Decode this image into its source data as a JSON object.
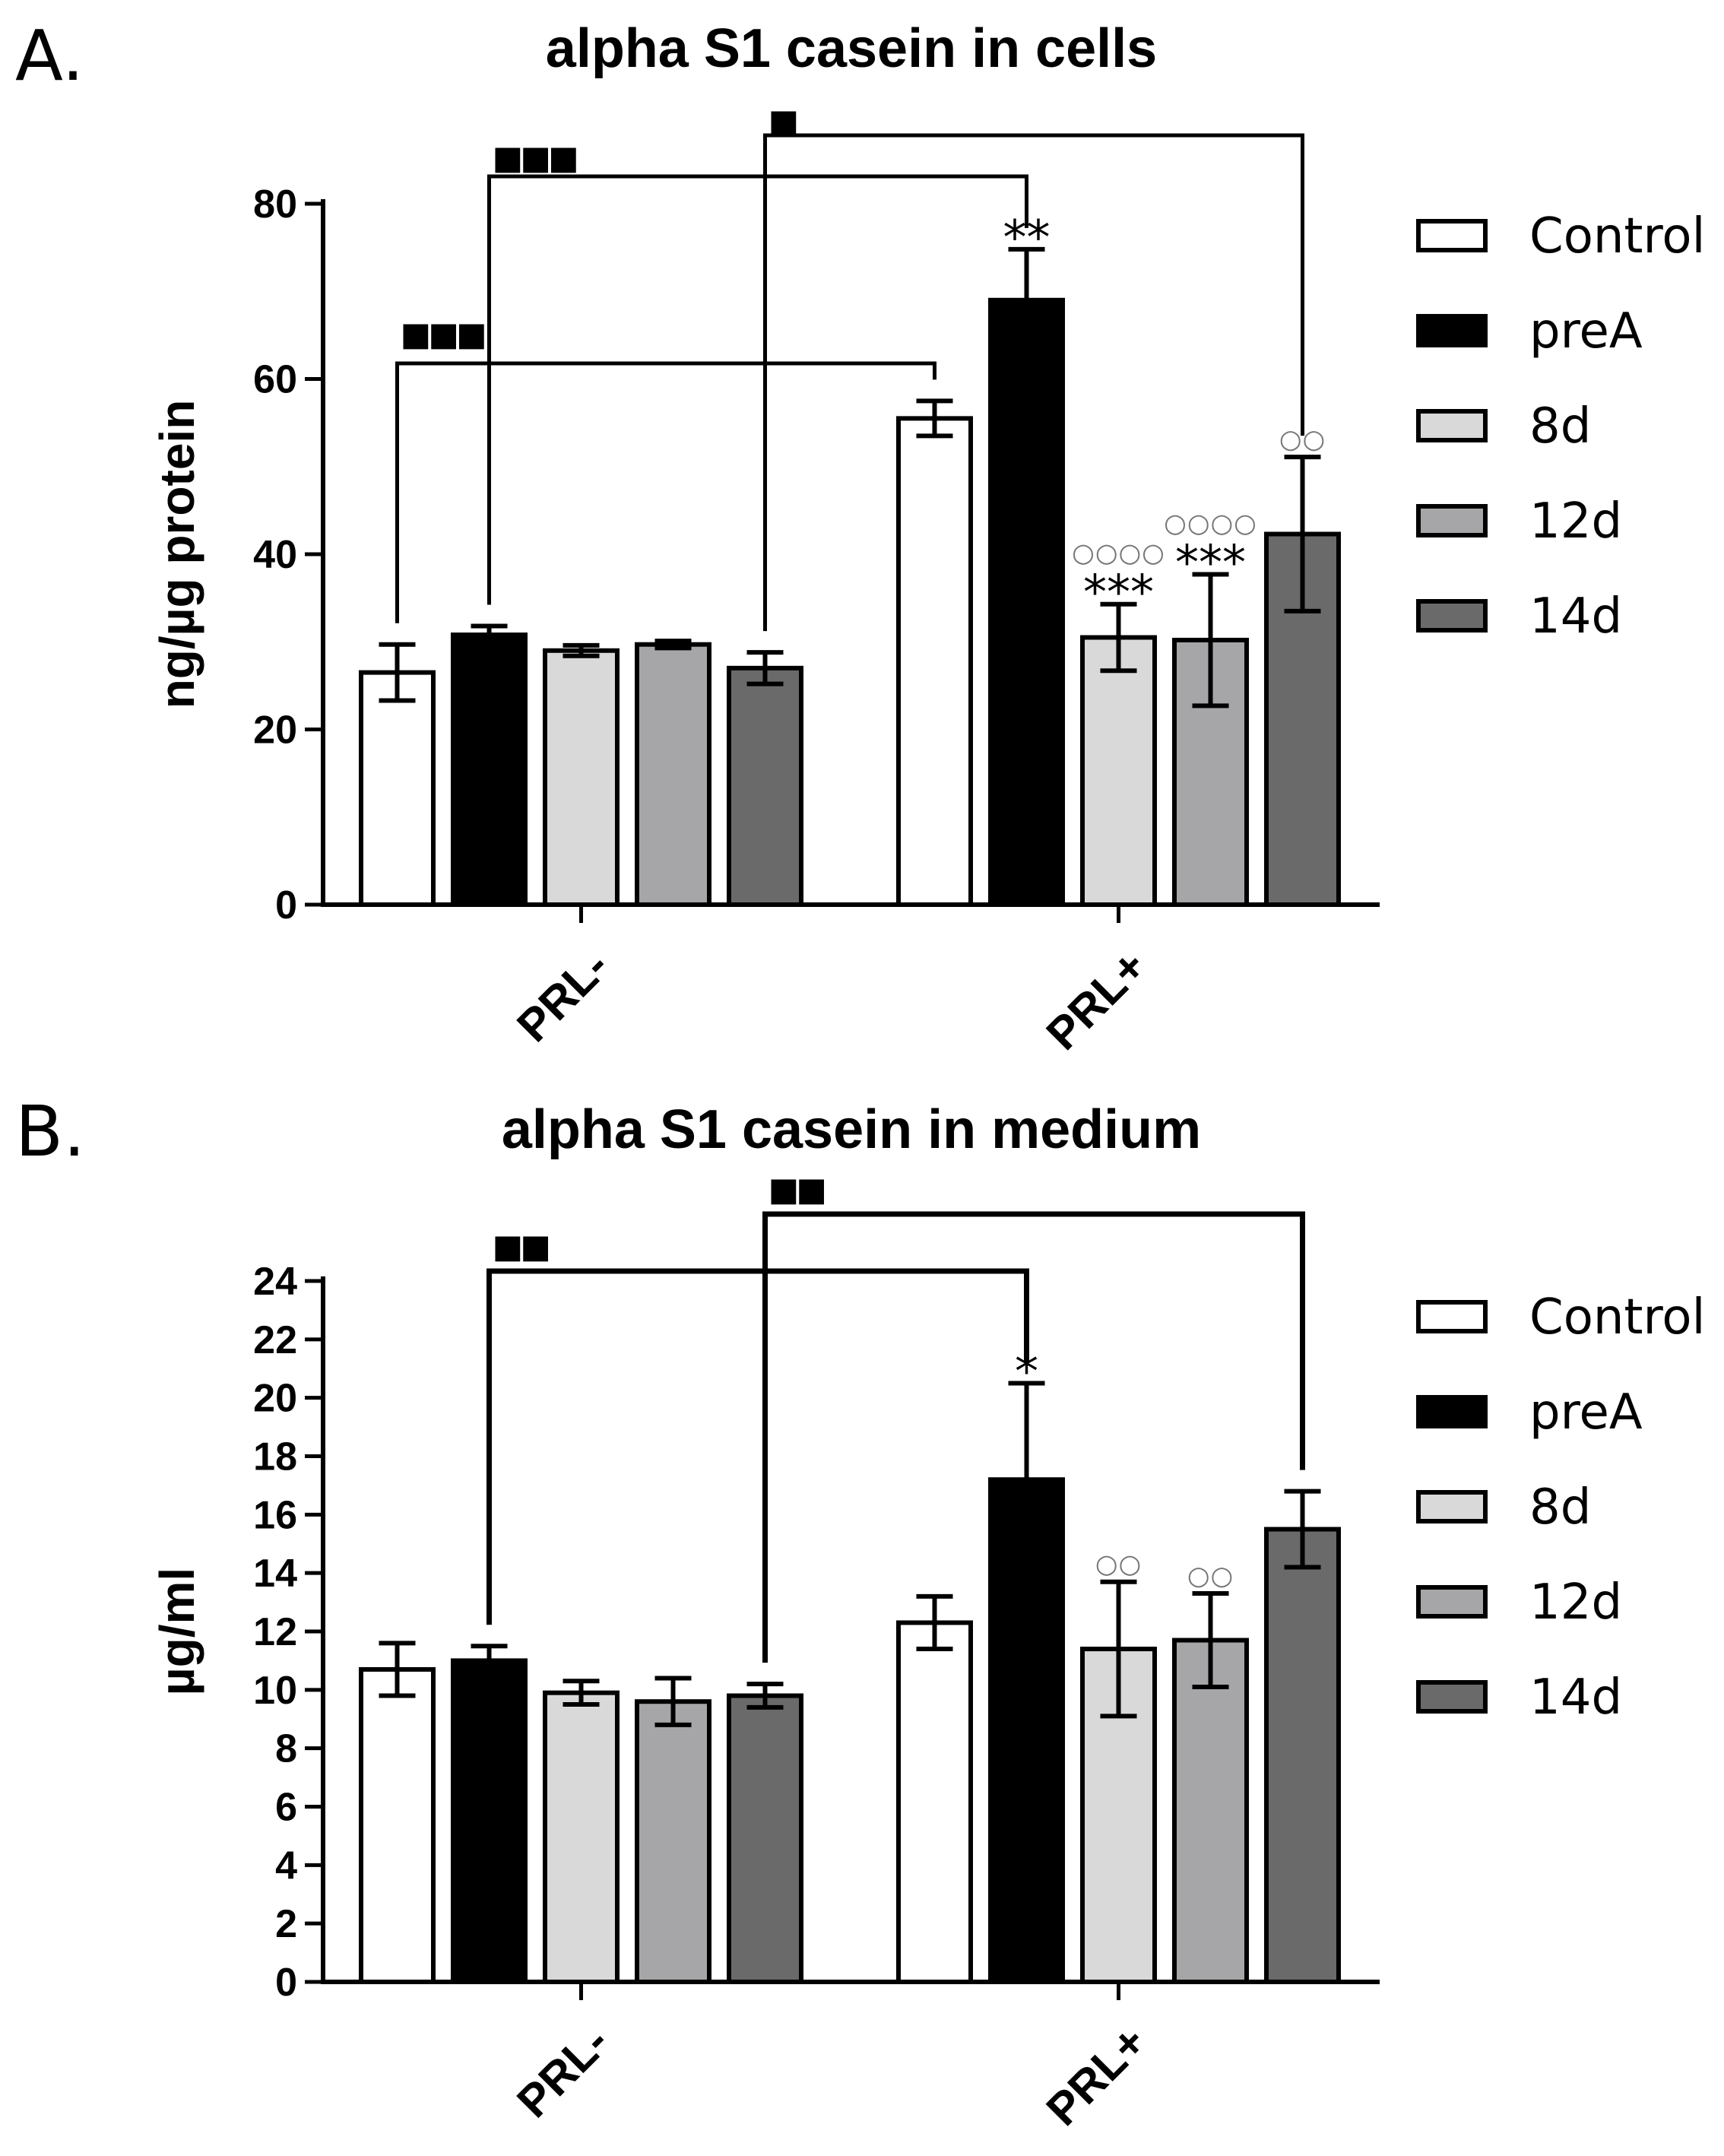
{
  "figure": {
    "domain": "Chart"
  },
  "colors": {
    "Control": "#ffffff",
    "preA": "#000000",
    "8d": "#d9d9d9",
    "12d": "#a6a6a9",
    "14d": "#6a6a6a",
    "stroke": "#000000"
  },
  "chart_data": [
    {
      "panel": "A.",
      "type": "bar",
      "title": "alpha S1 casein in cells",
      "xlabel": "",
      "ylabel": "ng/µg protein",
      "categories": [
        "PRL-",
        "PRL+"
      ],
      "ylim": [
        0,
        80
      ],
      "yticks": [
        0,
        20,
        40,
        60,
        80
      ],
      "legend": "right",
      "series": [
        {
          "name": "Control",
          "values": [
            26.5,
            55.5
          ],
          "errors": [
            3.2,
            2.0
          ]
        },
        {
          "name": "preA",
          "values": [
            30.8,
            69.0
          ],
          "errors": [
            1.0,
            5.8
          ]
        },
        {
          "name": "8d",
          "values": [
            29.0,
            30.5
          ],
          "errors": [
            0.6,
            3.8
          ]
        },
        {
          "name": "12d",
          "values": [
            29.7,
            30.2
          ],
          "errors": [
            0.4,
            7.5
          ]
        },
        {
          "name": "14d",
          "values": [
            27.0,
            42.3
          ],
          "errors": [
            1.8,
            8.8
          ]
        }
      ],
      "point_annotations": [
        {
          "category": "PRL+",
          "series": "preA",
          "text": "**"
        },
        {
          "category": "PRL+",
          "series": "8d",
          "text": "***",
          "symbol": "○○○○"
        },
        {
          "category": "PRL+",
          "series": "12d",
          "text": "***",
          "symbol": "○○○○"
        },
        {
          "category": "PRL+",
          "series": "14d",
          "text": "",
          "symbol": "○○"
        }
      ],
      "brackets": [
        {
          "from": {
            "category": "PRL-",
            "series": "Control"
          },
          "to": {
            "category": "PRL+",
            "series": "Control"
          },
          "marker": "▪▪▪",
          "level": 0
        },
        {
          "from": {
            "category": "PRL-",
            "series": "preA"
          },
          "to": {
            "category": "PRL+",
            "series": "preA"
          },
          "marker": "▪▪▪",
          "level": 1
        },
        {
          "from": {
            "category": "PRL-",
            "series": "14d"
          },
          "to": {
            "category": "PRL+",
            "series": "14d"
          },
          "marker": "▪",
          "level": 2
        }
      ]
    },
    {
      "panel": "B.",
      "type": "bar",
      "title": "alpha S1 casein in medium",
      "xlabel": "",
      "ylabel": "µg/ml",
      "categories": [
        "PRL-",
        "PRL+"
      ],
      "ylim": [
        0,
        24
      ],
      "yticks": [
        0,
        2,
        4,
        6,
        8,
        10,
        12,
        14,
        16,
        18,
        20,
        22,
        24
      ],
      "legend": "right",
      "series": [
        {
          "name": "Control",
          "values": [
            10.7,
            12.3
          ],
          "errors": [
            0.9,
            0.9
          ]
        },
        {
          "name": "preA",
          "values": [
            11.0,
            17.2
          ],
          "errors": [
            0.5,
            3.3
          ]
        },
        {
          "name": "8d",
          "values": [
            9.9,
            11.4
          ],
          "errors": [
            0.4,
            2.3
          ]
        },
        {
          "name": "12d",
          "values": [
            9.6,
            11.7
          ],
          "errors": [
            0.8,
            1.6
          ]
        },
        {
          "name": "14d",
          "values": [
            9.8,
            15.5
          ],
          "errors": [
            0.4,
            1.3
          ]
        }
      ],
      "point_annotations": [
        {
          "category": "PRL+",
          "series": "preA",
          "text": "*"
        },
        {
          "category": "PRL+",
          "series": "8d",
          "text": "",
          "symbol": "○○"
        },
        {
          "category": "PRL+",
          "series": "12d",
          "text": "",
          "symbol": "○○"
        }
      ],
      "brackets": [
        {
          "from": {
            "category": "PRL-",
            "series": "preA"
          },
          "to": {
            "category": "PRL+",
            "series": "preA"
          },
          "marker": "▪▪",
          "level": 0
        },
        {
          "from": {
            "category": "PRL-",
            "series": "14d"
          },
          "to": {
            "category": "PRL+",
            "series": "14d"
          },
          "marker": "▪▪",
          "level": 1
        }
      ]
    }
  ]
}
